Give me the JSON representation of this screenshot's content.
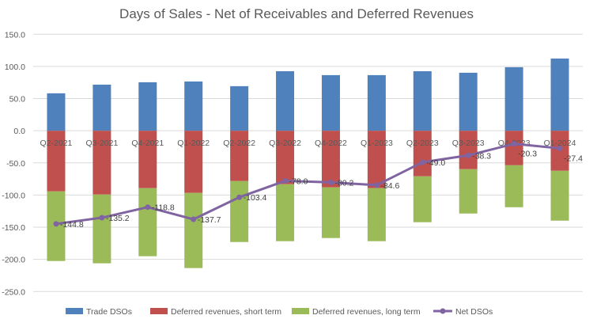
{
  "chart_data": {
    "type": "bar",
    "stacked": true,
    "title": "Days of Sales - Net of Receivables and Deferred Revenues",
    "xlabel": "",
    "ylabel": "",
    "ylim": [
      -250,
      150
    ],
    "yticks": [
      150,
      100,
      50,
      0,
      -50,
      -100,
      -150,
      -200,
      -250
    ],
    "ytick_labels": [
      "150.0",
      "100.0",
      "50.0",
      "0.0",
      "-50.0",
      "-100.0",
      "-150.0",
      "-200.0",
      "-250.0"
    ],
    "grid": true,
    "legend_position": "bottom",
    "categories": [
      "Q2-2021",
      "Q3-2021",
      "Q4-2021",
      "Q1-2022",
      "Q2-2022",
      "Q3-2022",
      "Q4-2022",
      "Q1-2023",
      "Q2-2023",
      "Q3-2023",
      "Q4-2023",
      "Q1-2024"
    ],
    "series": [
      {
        "name": "Trade DSOs",
        "type": "bar",
        "color": "#4F81BD",
        "values": [
          58.2,
          71.7,
          75.4,
          76.6,
          69.3,
          92.6,
          86.5,
          86.5,
          92.6,
          90.2,
          98.8,
          112.3
        ]
      },
      {
        "name": "Deferred revenues, short term",
        "type": "bar",
        "color": "#C0504D",
        "values": [
          -94.3,
          -99.2,
          -89.3,
          -96.7,
          -78.3,
          -83.2,
          -88.1,
          -89.3,
          -70.9,
          -59.8,
          -53.7,
          -62.3
        ]
      },
      {
        "name": "Deferred revenues, long term",
        "type": "bar",
        "color": "#9BBB59",
        "values": [
          -108.2,
          -106.9,
          -105.8,
          -116.8,
          -94.7,
          -88.5,
          -78.7,
          -82.4,
          -71.3,
          -68.9,
          -65.2,
          -77.5
        ]
      },
      {
        "name": "Net DSOs",
        "type": "line",
        "color": "#8064A2",
        "values": [
          -144.8,
          -135.2,
          -118.8,
          -137.7,
          -103.4,
          -78.0,
          -80.2,
          -84.6,
          -49.0,
          -38.3,
          -20.3,
          -27.4
        ],
        "labels": [
          "-144.8",
          "-135.2",
          "-118.8",
          "-137.7",
          "-103.4",
          "-78.0",
          "-80.2",
          "-84.6",
          "-49.0",
          "-38.3",
          "-20.3",
          "-27.4"
        ]
      }
    ]
  }
}
